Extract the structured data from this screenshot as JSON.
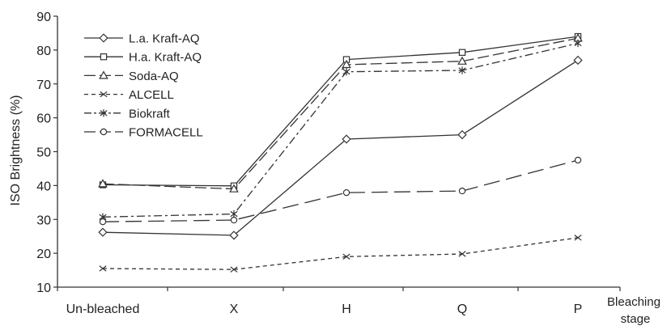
{
  "chart_data": {
    "type": "line",
    "title": "",
    "xlabel": "Bleaching stage",
    "xlabel_lines": [
      "Bleaching",
      "stage"
    ],
    "ylabel": "ISO Brightness (%)",
    "ylim": [
      10,
      90
    ],
    "yticks": [
      10,
      20,
      30,
      40,
      50,
      60,
      70,
      80,
      90
    ],
    "categories": [
      "Un-bleached",
      "X",
      "H",
      "Q",
      "P"
    ],
    "grid": false,
    "legend_position": "top-left",
    "series": [
      {
        "name": "L.a. Kraft-AQ",
        "marker": "diamond",
        "dash": "solid",
        "values": [
          26.2,
          25.3,
          53.7,
          55.0,
          77.0
        ]
      },
      {
        "name": "H.a. Kraft-AQ",
        "marker": "square",
        "dash": "solid",
        "values": [
          40.2,
          39.9,
          77.2,
          79.3,
          84.0
        ]
      },
      {
        "name": "Soda-AQ",
        "marker": "triangle",
        "dash": "longdash",
        "values": [
          40.5,
          39.0,
          75.7,
          76.7,
          83.5
        ]
      },
      {
        "name": "ALCELL",
        "marker": "x",
        "dash": "shortdash",
        "values": [
          15.5,
          15.2,
          19.0,
          19.8,
          24.6
        ]
      },
      {
        "name": "Biokraft",
        "marker": "star",
        "dash": "dashdot",
        "values": [
          30.7,
          31.6,
          73.6,
          74.0,
          82.0
        ]
      },
      {
        "name": "FORMACELL",
        "marker": "circle",
        "dash": "longdash2",
        "values": [
          29.3,
          29.8,
          37.9,
          38.4,
          47.5
        ]
      }
    ]
  }
}
